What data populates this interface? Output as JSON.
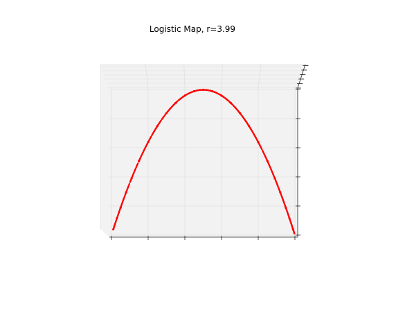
{
  "chart_data": {
    "type": "scatter",
    "projection": "3d",
    "title": "Logistic Map, r=3.99",
    "r": 3.99,
    "xlabel": "",
    "ylabel": "",
    "zlabel": "",
    "xlim": [
      0,
      1
    ],
    "ylim": [
      0,
      1
    ],
    "tick_labels_visible": false,
    "grid": true,
    "marker_color": "#ff0000",
    "series": [
      {
        "x": [
          0.01,
          0.03,
          0.05,
          0.08,
          0.11,
          0.15,
          0.2,
          0.25,
          0.3,
          0.35,
          0.4,
          0.45,
          0.5,
          0.55,
          0.6,
          0.65,
          0.7,
          0.75,
          0.8,
          0.85,
          0.89,
          0.92,
          0.95,
          0.97,
          0.99
        ],
        "y": [
          0.0395,
          0.1161,
          0.1895,
          0.2937,
          0.3906,
          0.5087,
          0.6384,
          0.7481,
          0.8379,
          0.9078,
          0.9576,
          0.9875,
          0.9975,
          0.9875,
          0.9576,
          0.9078,
          0.8379,
          0.7481,
          0.6384,
          0.5087,
          0.3906,
          0.2937,
          0.1895,
          0.1161,
          0.0395
        ]
      }
    ]
  }
}
